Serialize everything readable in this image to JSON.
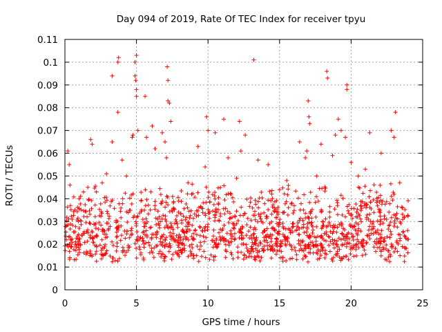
{
  "chart_data": {
    "type": "scatter",
    "title": "Day 094 of 2019, Rate Of TEC Index for receiver tpyu",
    "xlabel": "GPS time / hours",
    "ylabel": "ROTI / TECUs",
    "xlim": [
      0,
      25
    ],
    "ylim": [
      0,
      0.11
    ],
    "xticks": [
      0,
      5,
      10,
      15,
      20,
      25
    ],
    "xtick_labels": [
      "0",
      "5",
      "10",
      "15",
      "20",
      "25"
    ],
    "yticks": [
      0,
      0.01,
      0.02,
      0.03,
      0.04,
      0.05,
      0.06,
      0.07,
      0.08,
      0.09,
      0.1,
      0.11
    ],
    "ytick_labels": [
      "0",
      "0.01",
      "0.02",
      "0.03",
      "0.04",
      "0.05",
      "0.06",
      "0.07",
      "0.08",
      "0.09",
      "0.1",
      "0.11"
    ],
    "grid": true,
    "marker": "+",
    "color": "#ff0000",
    "series": [
      {
        "name": "ROTI",
        "points": [
          [
            0.1,
            0.022
          ],
          [
            0.2,
            0.061
          ],
          [
            0.3,
            0.055
          ],
          [
            0.35,
            0.046
          ],
          [
            0.5,
            0.031
          ],
          [
            0.7,
            0.035
          ],
          [
            1.0,
            0.04
          ],
          [
            1.3,
            0.043
          ],
          [
            1.6,
            0.045
          ],
          [
            1.8,
            0.066
          ],
          [
            1.9,
            0.064
          ],
          [
            2.2,
            0.043
          ],
          [
            2.6,
            0.047
          ],
          [
            2.9,
            0.051
          ],
          [
            3.3,
            0.094
          ],
          [
            3.3,
            0.065
          ],
          [
            3.7,
            0.1
          ],
          [
            3.75,
            0.102
          ],
          [
            3.7,
            0.078
          ],
          [
            4.0,
            0.057
          ],
          [
            4.3,
            0.05
          ],
          [
            4.7,
            0.067
          ],
          [
            4.75,
            0.068
          ],
          [
            4.9,
            0.1
          ],
          [
            4.9,
            0.094
          ],
          [
            4.95,
            0.092
          ],
          [
            5.0,
            0.103
          ],
          [
            5.0,
            0.088
          ],
          [
            5.0,
            0.085
          ],
          [
            5.1,
            0.07
          ],
          [
            5.6,
            0.085
          ],
          [
            5.7,
            0.067
          ],
          [
            6.1,
            0.072
          ],
          [
            6.3,
            0.062
          ],
          [
            6.8,
            0.069
          ],
          [
            7.0,
            0.065
          ],
          [
            7.1,
            0.058
          ],
          [
            7.15,
            0.098
          ],
          [
            7.2,
            0.092
          ],
          [
            7.2,
            0.083
          ],
          [
            7.3,
            0.082
          ],
          [
            7.4,
            0.074
          ],
          [
            8.6,
            0.047
          ],
          [
            9.3,
            0.063
          ],
          [
            9.8,
            0.054
          ],
          [
            9.9,
            0.076
          ],
          [
            10.0,
            0.07
          ],
          [
            10.5,
            0.069
          ],
          [
            11.1,
            0.075
          ],
          [
            11.4,
            0.058
          ],
          [
            12.0,
            0.049
          ],
          [
            12.2,
            0.074
          ],
          [
            12.3,
            0.061
          ],
          [
            12.6,
            0.068
          ],
          [
            13.2,
            0.101
          ],
          [
            13.5,
            0.057
          ],
          [
            14.2,
            0.055
          ],
          [
            15.0,
            0.044
          ],
          [
            15.5,
            0.048
          ],
          [
            16.4,
            0.065
          ],
          [
            16.8,
            0.058
          ],
          [
            16.9,
            0.061
          ],
          [
            17.0,
            0.083
          ],
          [
            17.05,
            0.076
          ],
          [
            17.1,
            0.073
          ],
          [
            17.6,
            0.05
          ],
          [
            17.9,
            0.064
          ],
          [
            18.3,
            0.096
          ],
          [
            18.35,
            0.093
          ],
          [
            18.7,
            0.059
          ],
          [
            18.9,
            0.068
          ],
          [
            19.1,
            0.075
          ],
          [
            19.3,
            0.07
          ],
          [
            19.6,
            0.067
          ],
          [
            19.7,
            0.09
          ],
          [
            19.7,
            0.088
          ],
          [
            20.0,
            0.056
          ],
          [
            20.5,
            0.05
          ],
          [
            21.0,
            0.053
          ],
          [
            21.3,
            0.069
          ],
          [
            22.1,
            0.06
          ],
          [
            22.8,
            0.07
          ],
          [
            23.0,
            0.067
          ],
          [
            23.1,
            0.078
          ],
          [
            23.4,
            0.047
          ]
        ],
        "band": {
          "description": "dense background cloud of ROTI values over the whole day",
          "x_range": [
            0,
            24
          ],
          "y_low": 0.01,
          "y_typical_high": 0.035
        }
      }
    ]
  }
}
